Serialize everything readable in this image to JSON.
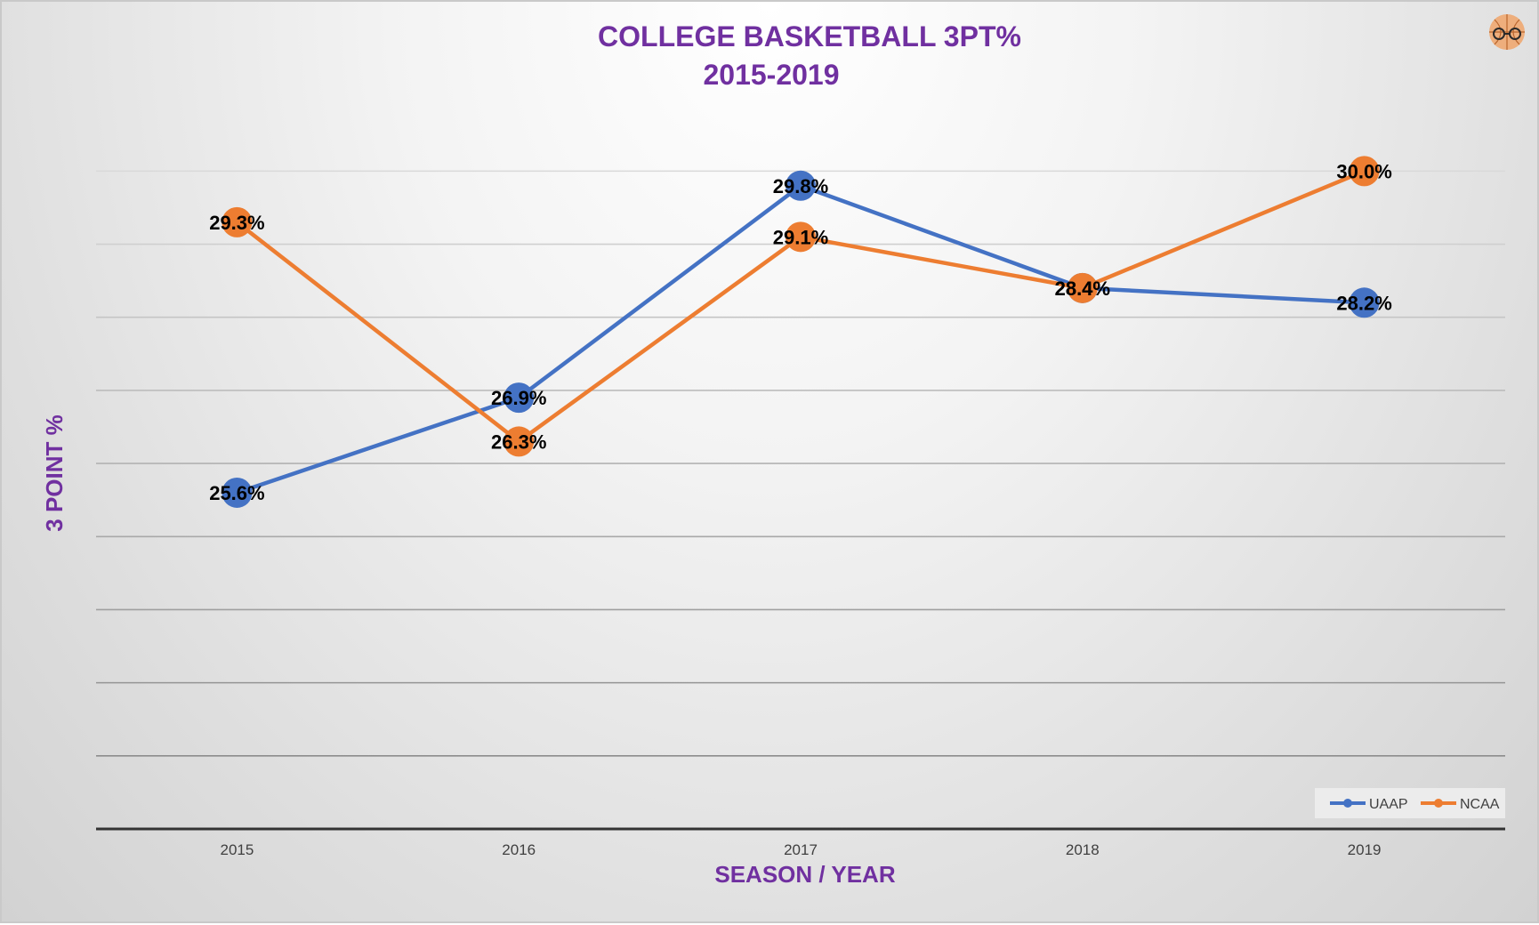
{
  "chart_data": {
    "type": "line",
    "title_lines": [
      "COLLEGE BASKETBALL 3PT%",
      "2015-2019"
    ],
    "xlabel": "SEASON / YEAR",
    "ylabel": "3 POINT %",
    "categories": [
      "2015",
      "2016",
      "2017",
      "2018",
      "2019"
    ],
    "ylim": [
      21.0,
      32.0
    ],
    "ytick_step": 1.0,
    "y_tick_labels_visible": false,
    "grid": true,
    "legend_position": "bottom-right",
    "series": [
      {
        "name": "UAAP",
        "color": "#4472c4",
        "values": [
          25.6,
          26.9,
          29.8,
          28.4,
          28.2
        ],
        "labels": [
          "25.6%",
          "26.9%",
          "29.8%",
          "28.4%",
          "28.2%"
        ]
      },
      {
        "name": "NCAA",
        "color": "#ed7d31",
        "values": [
          29.3,
          26.3,
          29.1,
          28.4,
          30.0
        ],
        "labels": [
          "29.3%",
          "26.3%",
          "29.1%",
          "28.4%",
          "30.0%"
        ]
      }
    ]
  },
  "logo": {
    "icon": "basketball-glasses-logo"
  }
}
